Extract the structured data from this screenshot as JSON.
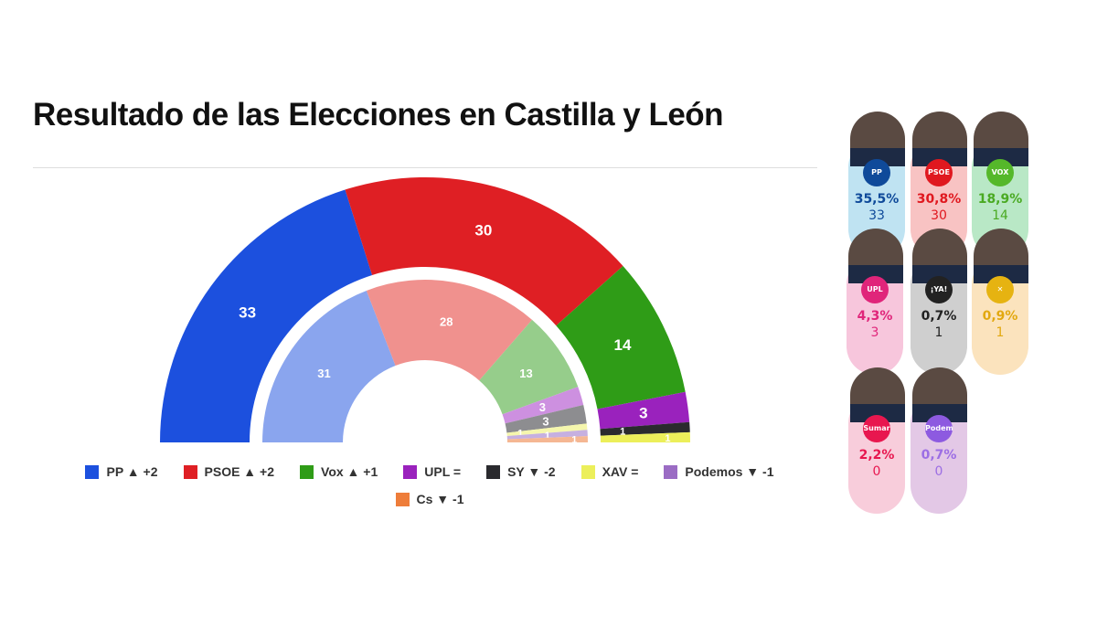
{
  "title": "Resultado de las Elecciones en Castilla y León",
  "chart_data": {
    "type": "parliament-hemicycle",
    "title": "Resultado de las Elecciones en Castilla y León",
    "series": [
      {
        "name": "current",
        "parties": [
          "PP",
          "PSOE",
          "Vox",
          "UPL",
          "SY",
          "XAV"
        ],
        "values": [
          33,
          30,
          14,
          3,
          1,
          1
        ],
        "colors": [
          "#1c50de",
          "#df1f24",
          "#2f9c17",
          "#9a22bd",
          "#2a2a2e",
          "#ecef5a"
        ]
      },
      {
        "name": "previous",
        "parties": [
          "PP",
          "PSOE",
          "Vox",
          "UPL",
          "SY",
          "XAV",
          "Podemos",
          "Cs"
        ],
        "values": [
          31,
          28,
          13,
          3,
          3,
          1,
          1,
          1
        ],
        "colors": [
          "#8aa5ee",
          "#f0918e",
          "#96cd8b",
          "#cd90e0",
          "#8d8d90",
          "#f5f6ad",
          "#c6b0e0",
          "#f5b793"
        ]
      }
    ],
    "legend": [
      {
        "label": "PP ▲ +2",
        "color": "#1c50de"
      },
      {
        "label": "PSOE ▲ +2",
        "color": "#df1f24"
      },
      {
        "label": "Vox ▲ +1",
        "color": "#2f9c17"
      },
      {
        "label": "UPL =",
        "color": "#9a22bd"
      },
      {
        "label": "SY ▼ -2",
        "color": "#2a2a2e"
      },
      {
        "label": "XAV =",
        "color": "#ecef5a"
      },
      {
        "label": "Podemos ▼ -1",
        "color": "#9b6cc4"
      },
      {
        "label": "Cs ▼ -1",
        "color": "#ee7d3a"
      }
    ]
  },
  "candidates": [
    {
      "logo": "PP",
      "pct": "35,5%",
      "seats": "33",
      "bg": "#bfe3f2",
      "color": "#0f4a9a",
      "logoBg": "#0f4a9a"
    },
    {
      "logo": "PSOE",
      "pct": "30,8%",
      "seats": "30",
      "bg": "#f8c3c3",
      "color": "#e0181f",
      "logoBg": "#e0181f"
    },
    {
      "logo": "VOX",
      "pct": "18,9%",
      "seats": "14",
      "bg": "#b9e8c6",
      "color": "#4aaa22",
      "logoBg": "#55b82a"
    },
    {
      "logo": "UPL",
      "pct": "4,3%",
      "seats": "3",
      "bg": "#f7c6dc",
      "color": "#e0257a",
      "logoBg": "#e0257a"
    },
    {
      "logo": "¡YA!",
      "pct": "0,7%",
      "seats": "1",
      "bg": "#cfcfcf",
      "color": "#222",
      "logoBg": "#222"
    },
    {
      "logo": "✕",
      "pct": "0,9%",
      "seats": "1",
      "bg": "#fbe3bd",
      "color": "#e2a80f",
      "logoBg": "#e6b311"
    },
    {
      "logo": "Sumar",
      "pct": "2,2%",
      "seats": "0",
      "bg": "#f8cddb",
      "color": "#e8174f",
      "logoBg": "#e8174f"
    },
    {
      "logo": "Podemos",
      "pct": "0,7%",
      "seats": "0",
      "bg": "#e3c8e6",
      "color": "#9c6ee4",
      "logoBg": "#8d5ae0"
    }
  ]
}
